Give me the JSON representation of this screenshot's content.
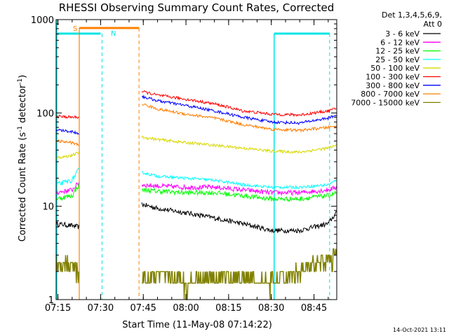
{
  "chart_data": {
    "type": "line",
    "title": "RHESSI Observing Summary Count Rates, Corrected",
    "xlabel": "Start Time (11-May-08 07:14:22)",
    "ylabel_parts": [
      "Corrected Count Rate (s",
      "-1",
      " detector",
      "-1",
      ")"
    ],
    "xlim": [
      "07:14:22",
      "08:53:00"
    ],
    "ylim": [
      1,
      1000
    ],
    "yscale": "log",
    "x_ticks": [
      "07:15",
      "07:30",
      "07:45",
      "08:00",
      "08:15",
      "08:30",
      "08:45"
    ],
    "y_ticks": [
      "1",
      "10",
      "100",
      "1000"
    ],
    "legend_header": [
      "Det 1,3,4,5,6,9,",
      "Att 0"
    ],
    "legend_placement": "right",
    "footer_date": "14-Oct-2021 13:11",
    "colors": {
      "axis": "#000000",
      "night": "#00e5e5",
      "saa": "#ff7f00"
    },
    "markers": {
      "s_label": "S",
      "n_label": "N"
    },
    "series": [
      {
        "name": "3 - 6 keV",
        "color": "#000000",
        "segments": [
          {
            "x": [
              "07:14:22",
              "07:20",
              "07:22:30"
            ],
            "y": [
              6.5,
              6.2,
              6.0
            ]
          },
          {
            "x": [
              "07:44:30",
              "07:50",
              "08:00",
              "08:10",
              "08:20",
              "08:30",
              "08:40",
              "08:50",
              "08:53"
            ],
            "y": [
              10.5,
              9.5,
              8.5,
              7.5,
              6.5,
              5.5,
              5.5,
              6.5,
              8.5
            ]
          }
        ]
      },
      {
        "name": "6 - 12 keV",
        "color": "#ff00ff",
        "segments": [
          {
            "x": [
              "07:14:22",
              "07:20",
              "07:22:30"
            ],
            "y": [
              14,
              15,
              18
            ]
          },
          {
            "x": [
              "07:44:30",
              "07:50",
              "08:00",
              "08:10",
              "08:20",
              "08:30",
              "08:40",
              "08:50",
              "08:53"
            ],
            "y": [
              17,
              16.5,
              16,
              16,
              15,
              14,
              14,
              15,
              16
            ]
          }
        ]
      },
      {
        "name": "12 - 25 keV",
        "color": "#00ff00",
        "segments": [
          {
            "x": [
              "07:14:22",
              "07:20",
              "07:22:30"
            ],
            "y": [
              12,
              13,
              17
            ]
          },
          {
            "x": [
              "07:44:30",
              "07:50",
              "08:00",
              "08:10",
              "08:20",
              "08:30",
              "08:40",
              "08:50",
              "08:53"
            ],
            "y": [
              15,
              14.5,
              14,
              14,
              13,
              12,
              12,
              13,
              14
            ]
          }
        ]
      },
      {
        "name": "25 - 50 keV",
        "color": "#00ffff",
        "segments": [
          {
            "x": [
              "07:14:22",
              "07:20",
              "07:22:30"
            ],
            "y": [
              17,
              19,
              25
            ]
          },
          {
            "x": [
              "07:44:30",
              "07:50",
              "08:00",
              "08:10",
              "08:20",
              "08:30",
              "08:40",
              "08:50",
              "08:53"
            ],
            "y": [
              23,
              21,
              20,
              19,
              17,
              16,
              16,
              17,
              19
            ]
          }
        ]
      },
      {
        "name": "50 - 100 keV",
        "color": "#d8d800",
        "segments": [
          {
            "x": [
              "07:14:22",
              "07:20",
              "07:22:30"
            ],
            "y": [
              33,
              35,
              38
            ]
          },
          {
            "x": [
              "07:44:30",
              "07:50",
              "08:00",
              "08:10",
              "08:20",
              "08:30",
              "08:40",
              "08:50",
              "08:53"
            ],
            "y": [
              55,
              52,
              48,
              45,
              42,
              39,
              38,
              42,
              45
            ]
          }
        ]
      },
      {
        "name": "100 - 300 keV",
        "color": "#ff0000",
        "segments": [
          {
            "x": [
              "07:14:22",
              "07:20",
              "07:22:30"
            ],
            "y": [
              92,
              90,
              90
            ]
          },
          {
            "x": [
              "07:44:30",
              "07:50",
              "08:00",
              "08:10",
              "08:20",
              "08:30",
              "08:40",
              "08:50",
              "08:53"
            ],
            "y": [
              170,
              155,
              140,
              125,
              105,
              97,
              95,
              105,
              112
            ]
          }
        ]
      },
      {
        "name": "300 - 800 keV",
        "color": "#0000ff",
        "segments": [
          {
            "x": [
              "07:14:22",
              "07:20",
              "07:22:30"
            ],
            "y": [
              66,
              63,
              60
            ]
          },
          {
            "x": [
              "07:44:30",
              "07:50",
              "08:00",
              "08:10",
              "08:20",
              "08:30",
              "08:40",
              "08:50",
              "08:53"
            ],
            "y": [
              150,
              135,
              120,
              105,
              90,
              80,
              78,
              88,
              95
            ]
          }
        ]
      },
      {
        "name": "800 - 7000 keV",
        "color": "#ff7f00",
        "segments": [
          {
            "x": [
              "07:14:22",
              "07:20",
              "07:22:30"
            ],
            "y": [
              50,
              48,
              45
            ]
          },
          {
            "x": [
              "07:44:30",
              "07:50",
              "08:00",
              "08:10",
              "08:20",
              "08:30",
              "08:40",
              "08:50",
              "08:53"
            ],
            "y": [
              125,
              110,
              97,
              88,
              75,
              67,
              65,
              70,
              72
            ]
          }
        ]
      },
      {
        "name": "7000 - 15000 keV",
        "color": "#808000",
        "segments": [
          {
            "x": [
              "07:14:22",
              "07:20",
              "07:22:30"
            ],
            "y": [
              2.5,
              2.2,
              1.8
            ]
          },
          {
            "x": [
              "07:44:30",
              "07:50",
              "08:00",
              "08:10",
              "08:20",
              "08:30",
              "08:40",
              "08:50",
              "08:53"
            ],
            "y": [
              1.6,
              1.8,
              1.5,
              1.9,
              1.7,
              1.5,
              2.0,
              2.6,
              3.0
            ]
          }
        ]
      }
    ]
  }
}
